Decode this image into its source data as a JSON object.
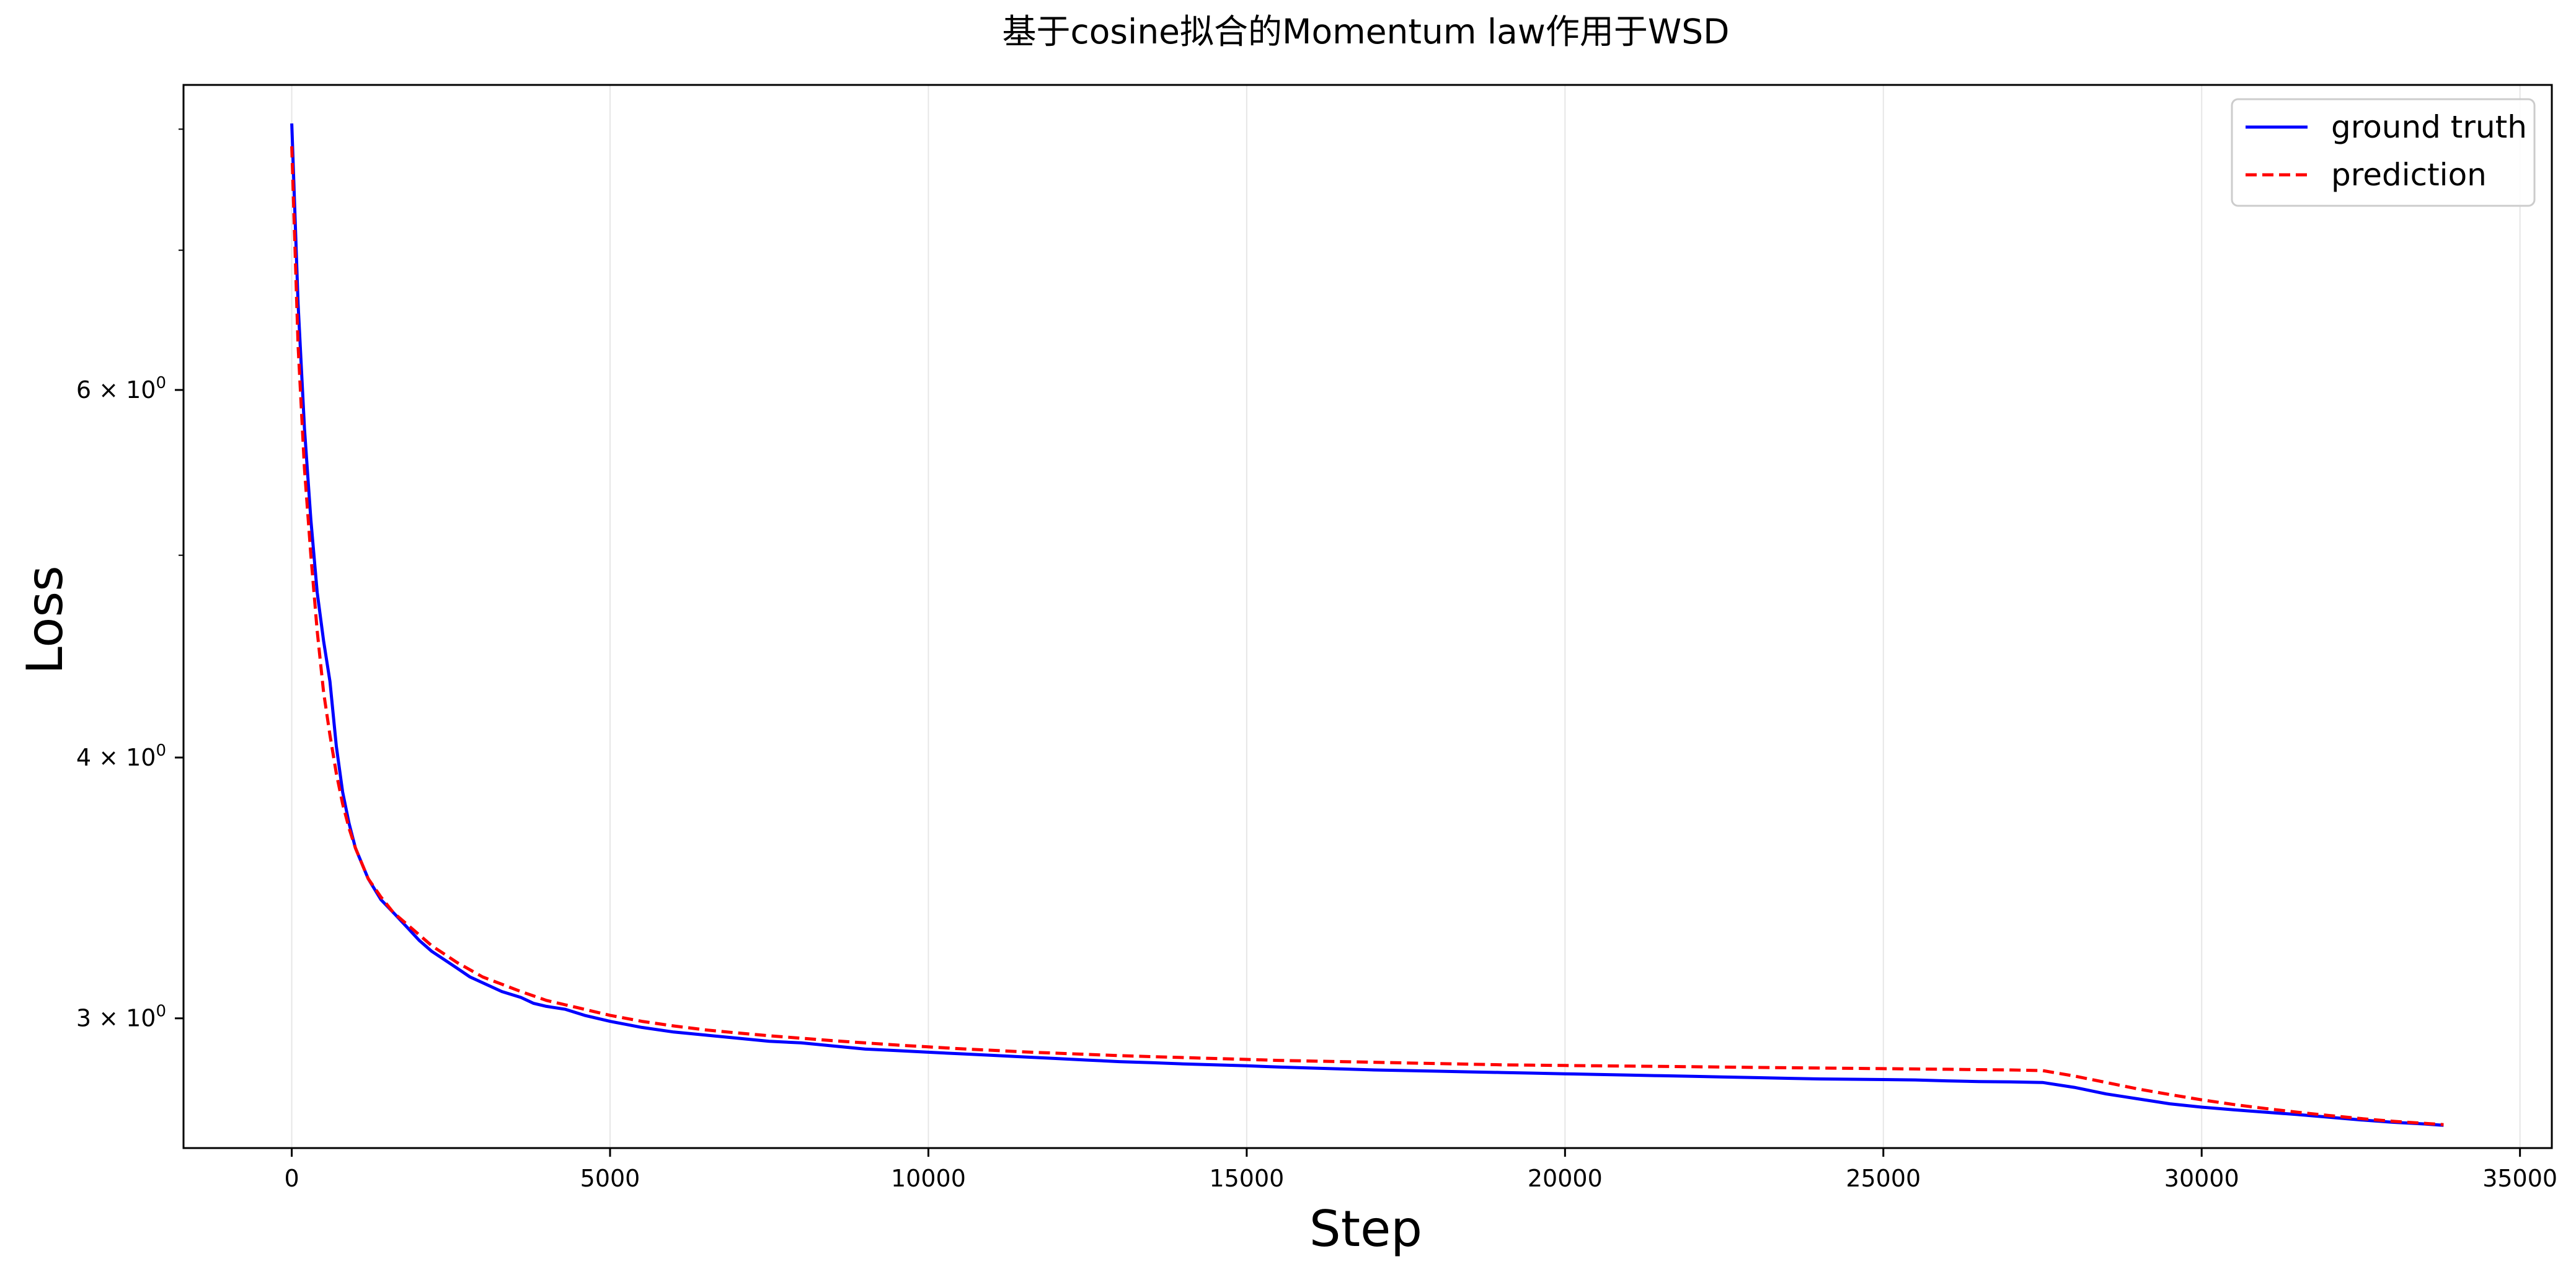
{
  "chart_data": {
    "type": "line",
    "title": "基于cosine拟合的Momentum law作用于WSD",
    "xlabel": "Step",
    "ylabel": "Loss",
    "xlim": [
      -1700,
      35500
    ],
    "ylim": [
      2.6,
      8.4
    ],
    "y_scale": "log",
    "grid": "vertical",
    "legend_position": "top-right",
    "x_ticks": [
      0,
      5000,
      10000,
      15000,
      20000,
      25000,
      30000,
      35000
    ],
    "x_tick_labels": [
      "0",
      "5000",
      "10000",
      "15000",
      "20000",
      "25000",
      "30000",
      "35000"
    ],
    "y_ticks": [
      3,
      4,
      6
    ],
    "y_tick_bases": [
      "3 × 10",
      "4 × 10",
      "6 × 10"
    ],
    "y_tick_exponent": "0",
    "y_minor_ticks": [
      5,
      7,
      8
    ],
    "series": [
      {
        "name": "ground truth",
        "color": "#0000ff",
        "style": "solid",
        "x": [
          0,
          100,
          200,
          300,
          400,
          500,
          600,
          700,
          800,
          900,
          1000,
          1200,
          1400,
          1600,
          1800,
          2000,
          2200,
          2400,
          2600,
          2800,
          3000,
          3300,
          3600,
          3800,
          4000,
          4300,
          4600,
          5000,
          5500,
          6000,
          6500,
          7000,
          7500,
          8000,
          8500,
          9000,
          9500,
          10000,
          10500,
          11000,
          11500,
          12000,
          12500,
          13000,
          13500,
          14000,
          14500,
          15000,
          15500,
          16000,
          16500,
          17000,
          17500,
          18000,
          18500,
          19000,
          19500,
          20000,
          20500,
          21000,
          21500,
          22000,
          22500,
          23000,
          23500,
          24000,
          24500,
          25000,
          25500,
          26000,
          26500,
          27000,
          27500,
          28000,
          28500,
          29000,
          29500,
          30000,
          30500,
          31000,
          31500,
          32000,
          32500,
          33000,
          33500,
          33800
        ],
        "y": [
          8.05,
          6.6,
          5.75,
          5.2,
          4.8,
          4.55,
          4.35,
          4.05,
          3.85,
          3.72,
          3.62,
          3.5,
          3.42,
          3.37,
          3.32,
          3.27,
          3.23,
          3.2,
          3.17,
          3.14,
          3.12,
          3.09,
          3.07,
          3.05,
          3.04,
          3.03,
          3.01,
          2.99,
          2.97,
          2.955,
          2.945,
          2.935,
          2.925,
          2.92,
          2.91,
          2.9,
          2.895,
          2.89,
          2.885,
          2.88,
          2.875,
          2.87,
          2.865,
          2.86,
          2.857,
          2.853,
          2.85,
          2.847,
          2.843,
          2.84,
          2.837,
          2.834,
          2.832,
          2.83,
          2.828,
          2.826,
          2.824,
          2.822,
          2.82,
          2.818,
          2.816,
          2.814,
          2.812,
          2.81,
          2.808,
          2.806,
          2.805,
          2.804,
          2.803,
          2.8,
          2.798,
          2.797,
          2.795,
          2.78,
          2.76,
          2.745,
          2.73,
          2.72,
          2.712,
          2.705,
          2.698,
          2.69,
          2.682,
          2.675,
          2.67,
          2.666
        ]
      },
      {
        "name": "prediction",
        "color": "#ff0000",
        "style": "dashed",
        "x": [
          0,
          100,
          200,
          300,
          400,
          500,
          600,
          700,
          800,
          900,
          1000,
          1200,
          1400,
          1600,
          1800,
          2000,
          2200,
          2400,
          2600,
          2800,
          3000,
          3300,
          3600,
          3800,
          4000,
          4300,
          4600,
          5000,
          5500,
          6000,
          6500,
          7000,
          7500,
          8000,
          8500,
          9000,
          9500,
          10000,
          10500,
          11000,
          11500,
          12000,
          12500,
          13000,
          13500,
          14000,
          14500,
          15000,
          15500,
          16000,
          16500,
          17000,
          17500,
          18000,
          18500,
          19000,
          19500,
          20000,
          20500,
          21000,
          21500,
          22000,
          22500,
          23000,
          23500,
          24000,
          24500,
          25000,
          25500,
          26000,
          26500,
          27000,
          27500,
          28000,
          28500,
          29000,
          29500,
          30000,
          30500,
          31000,
          31500,
          32000,
          32500,
          33000,
          33500,
          33800
        ],
        "y": [
          7.85,
          6.3,
          5.5,
          5.0,
          4.6,
          4.3,
          4.1,
          3.93,
          3.8,
          3.7,
          3.62,
          3.5,
          3.43,
          3.37,
          3.33,
          3.29,
          3.25,
          3.22,
          3.19,
          3.165,
          3.14,
          3.115,
          3.09,
          3.075,
          3.06,
          3.045,
          3.03,
          3.01,
          2.99,
          2.975,
          2.962,
          2.952,
          2.943,
          2.935,
          2.927,
          2.92,
          2.913,
          2.907,
          2.901,
          2.896,
          2.891,
          2.887,
          2.883,
          2.879,
          2.876,
          2.873,
          2.87,
          2.867,
          2.864,
          2.862,
          2.86,
          2.858,
          2.856,
          2.854,
          2.852,
          2.85,
          2.849,
          2.848,
          2.847,
          2.846,
          2.845,
          2.844,
          2.843,
          2.842,
          2.841,
          2.84,
          2.839,
          2.838,
          2.837,
          2.836,
          2.835,
          2.834,
          2.832,
          2.815,
          2.795,
          2.775,
          2.758,
          2.742,
          2.728,
          2.716,
          2.705,
          2.695,
          2.686,
          2.678,
          2.672,
          2.668
        ]
      }
    ]
  }
}
